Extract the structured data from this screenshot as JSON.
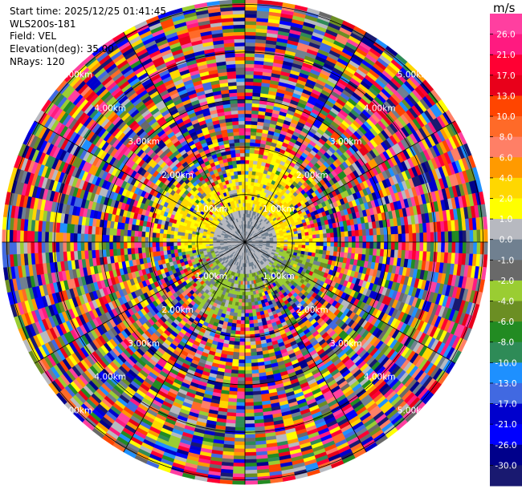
{
  "header": {
    "start_time": "Start time: 2025/12/25 01:41:45",
    "instrument": "WLS200s-181",
    "field": "Field: VEL",
    "elevation": "Elevation(deg): 35.00",
    "nrays": "NRays: 120"
  },
  "chart_data": {
    "type": "ppi-polar",
    "field": "VEL",
    "unit": "m/s",
    "elevation_deg": 35.0,
    "n_rays": 120,
    "range_rings_km": [
      1.0,
      2.0,
      3.0,
      4.0,
      5.0
    ],
    "range_labels": [
      "1.00km",
      "2.00km",
      "3.00km",
      "4.00km",
      "5.00km"
    ],
    "spoke_angles_deg": [
      0,
      30,
      60,
      90,
      120,
      150,
      180,
      210,
      240,
      270,
      300,
      330
    ],
    "max_range_km": 5.1,
    "colorbar": {
      "tick_labels": [
        "26.0",
        "21.0",
        "17.0",
        "13.0",
        "10.0",
        "8.0",
        "6.0",
        "4.0",
        "2.0",
        "1.0",
        "0.0",
        "-1.0",
        "-2.0",
        "-4.0",
        "-6.0",
        "-8.0",
        "-10.0",
        "-13.0",
        "-17.0",
        "-21.0",
        "-26.0",
        "-30.0"
      ],
      "colors": [
        "#ff3fa0",
        "#ff1a80",
        "#ff0033",
        "#e8001a",
        "#ff4500",
        "#ff6a28",
        "#ff7f66",
        "#ff9a00",
        "#ffd700",
        "#ffff00",
        "#b7b9c0",
        "#708090",
        "#696969",
        "#9acd32",
        "#6b8e23",
        "#228b22",
        "#2e8b57",
        "#1e90ff",
        "#4169e1",
        "#0000cd",
        "#0000ff",
        "#00008b",
        "#191970"
      ]
    },
    "near_field": {
      "north_half_velocity": "2.0 to 4.0",
      "south_half_velocity": "-2.0 to -4.0",
      "center_velocity": "0.0"
    }
  }
}
